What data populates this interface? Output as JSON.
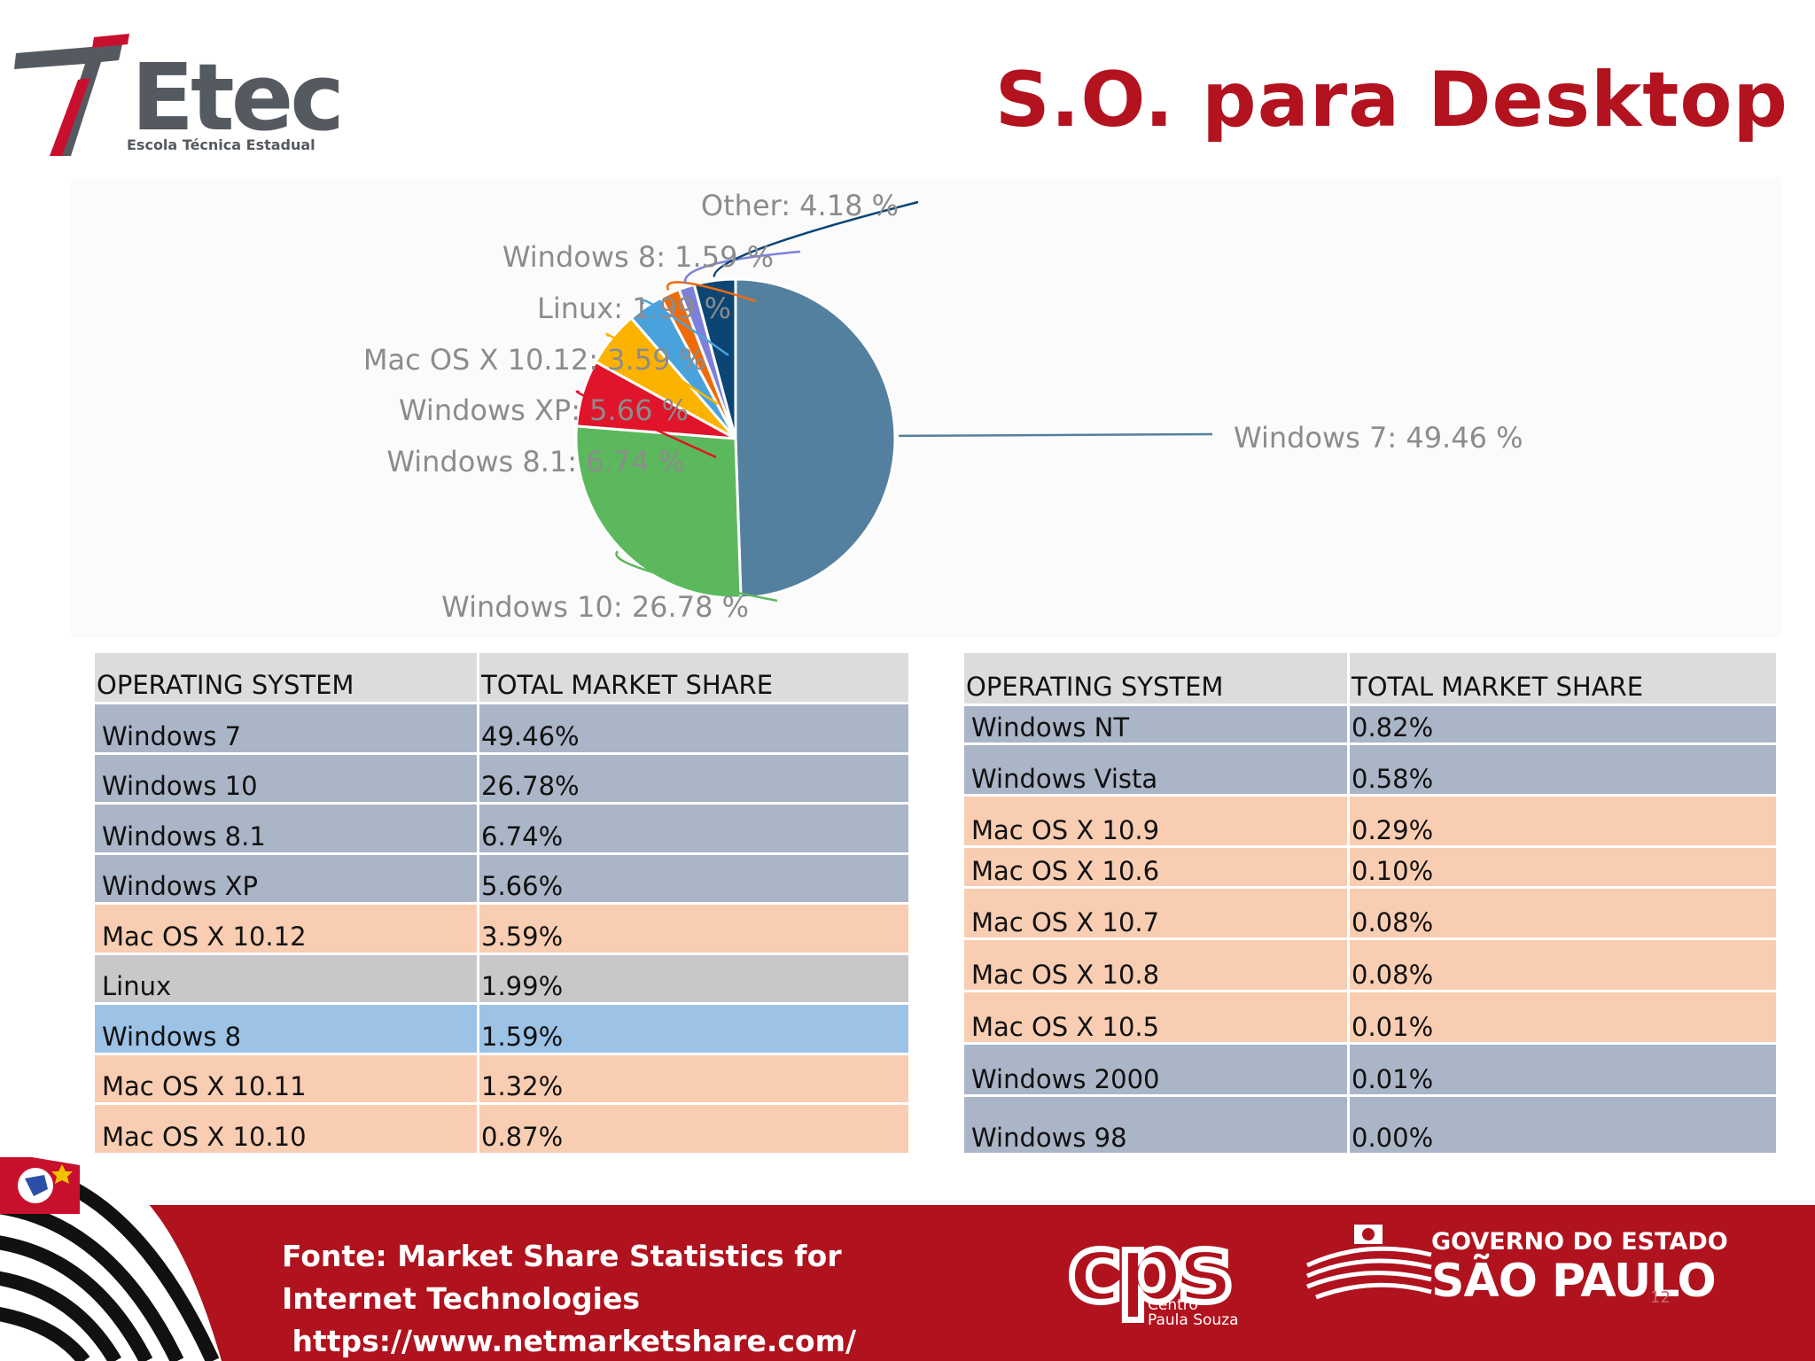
{
  "logo": {
    "word": "Etec",
    "subtitle": "Escola Técnica Estadual"
  },
  "title": "S.O. para Desktop",
  "chart_data": {
    "type": "pie",
    "slices": [
      {
        "label": "Windows 7",
        "value": 49.46,
        "color": "#54809f",
        "text": "Windows 7: 49.46 %"
      },
      {
        "label": "Windows 10",
        "value": 26.78,
        "color": "#5cb85c",
        "text": "Windows 10: 26.78 %"
      },
      {
        "label": "Windows 8.1",
        "value": 6.74,
        "color": "#e0142a",
        "text": "Windows 8.1: 6.74 %"
      },
      {
        "label": "Windows XP",
        "value": 5.66,
        "color": "#fbb300",
        "text": "Windows XP: 5.66 %"
      },
      {
        "label": "Mac OS X 10.12",
        "value": 3.59,
        "color": "#4aa2dc",
        "text": "Mac OS X 10.12: 3.59 %"
      },
      {
        "label": "Linux",
        "value": 1.99,
        "color": "#ef6b0a",
        "text": "Linux: 1.99 %"
      },
      {
        "label": "Windows 8",
        "value": 1.59,
        "color": "#7d80d8",
        "text": "Windows 8: 1.59 %"
      },
      {
        "label": "Other",
        "value": 4.18,
        "color": "#0b4574",
        "text": "Other: 4.18 %"
      }
    ]
  },
  "table_left": {
    "headers": [
      "OPERATING SYSTEM",
      "TOTAL MARKET SHARE"
    ],
    "rows": [
      {
        "os": "Windows 7",
        "share": "49.46%"
      },
      {
        "os": "Windows 10",
        "share": "26.78%"
      },
      {
        "os": "Windows 8.1",
        "share": "6.74%"
      },
      {
        "os": "Windows XP",
        "share": "5.66%"
      },
      {
        "os": "Mac OS X 10.12",
        "share": "3.59%"
      },
      {
        "os": "Linux",
        "share": "1.99%"
      },
      {
        "os": "Windows 8",
        "share": "1.59%"
      },
      {
        "os": "Mac OS X 10.11",
        "share": "1.32%"
      },
      {
        "os": "Mac OS X 10.10",
        "share": "0.87%"
      }
    ]
  },
  "table_right": {
    "headers": [
      "OPERATING SYSTEM",
      "TOTAL MARKET SHARE"
    ],
    "rows": [
      {
        "os": "Windows NT",
        "share": "0.82%"
      },
      {
        "os": "Windows Vista",
        "share": "0.58%"
      },
      {
        "os": "Mac OS X 10.9",
        "share": "0.29%"
      },
      {
        "os": "Mac OS X 10.6",
        "share": "0.10%"
      },
      {
        "os": "Mac OS X 10.7",
        "share": "0.08%"
      },
      {
        "os": "Mac OS X 10.8",
        "share": "0.08%"
      },
      {
        "os": "Mac OS X 10.5",
        "share": "0.01%"
      },
      {
        "os": "Windows 2000",
        "share": "0.01%"
      },
      {
        "os": "Windows 98",
        "share": "0.00%"
      }
    ]
  },
  "footer": {
    "source_line1": "Fonte: Market Share Statistics for",
    "source_line2": "Internet Technologies",
    "source_line3": " https://www.netmarketshare.com/",
    "cps_logo": "cps",
    "cps_sub1": "Centro",
    "cps_sub2": "Paula Souza",
    "gov_line1": "GOVERNO DO ESTADO",
    "gov_line2": "SÃO PAULO",
    "page_number": "12"
  }
}
